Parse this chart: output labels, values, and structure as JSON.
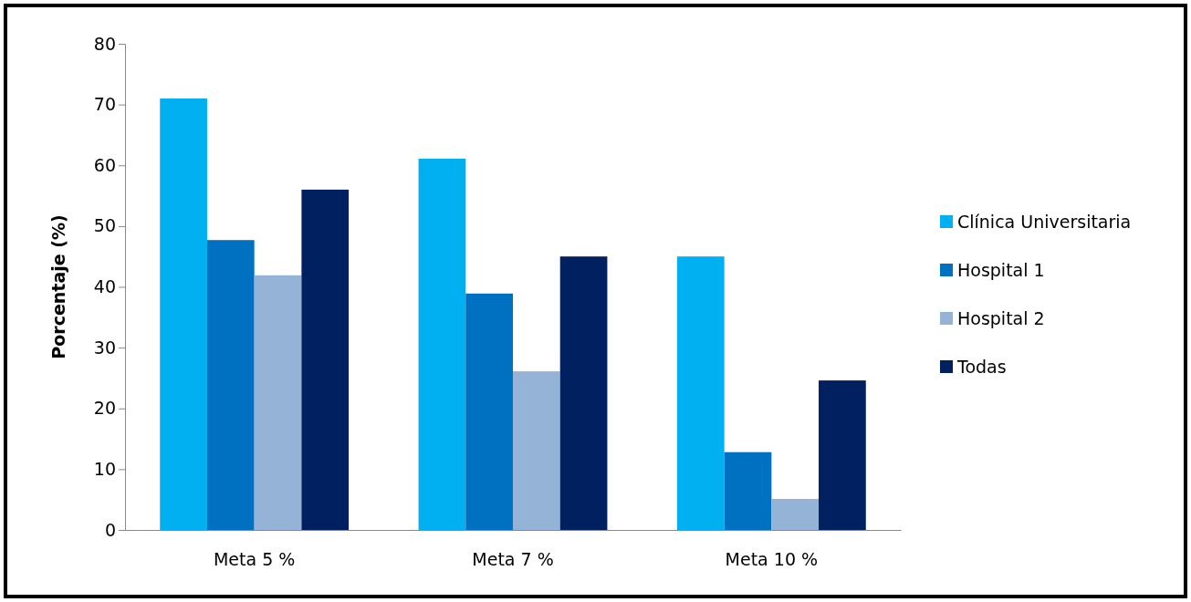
{
  "chart_data": {
    "type": "bar",
    "ylabel": "Porcentaje (%)",
    "categories": [
      "Meta 5 %",
      "Meta 7 %",
      "Meta 10 %"
    ],
    "series": [
      {
        "name": "Clínica Universitaria",
        "color": "#00b0f0",
        "values": [
          71,
          61.1,
          45
        ]
      },
      {
        "name": "Hospital 1",
        "color": "#0070c0",
        "values": [
          47.7,
          38.9,
          12.8
        ]
      },
      {
        "name": "Hospital 2",
        "color": "#95b3d7",
        "values": [
          41.9,
          26.1,
          5.1
        ]
      },
      {
        "name": "Todas",
        "color": "#002060",
        "values": [
          56,
          45,
          24.6
        ]
      }
    ],
    "ylim": [
      0,
      80
    ],
    "yticks": [
      0,
      10,
      20,
      30,
      40,
      50,
      60,
      70,
      80
    ],
    "legend": "right",
    "grid": false
  }
}
